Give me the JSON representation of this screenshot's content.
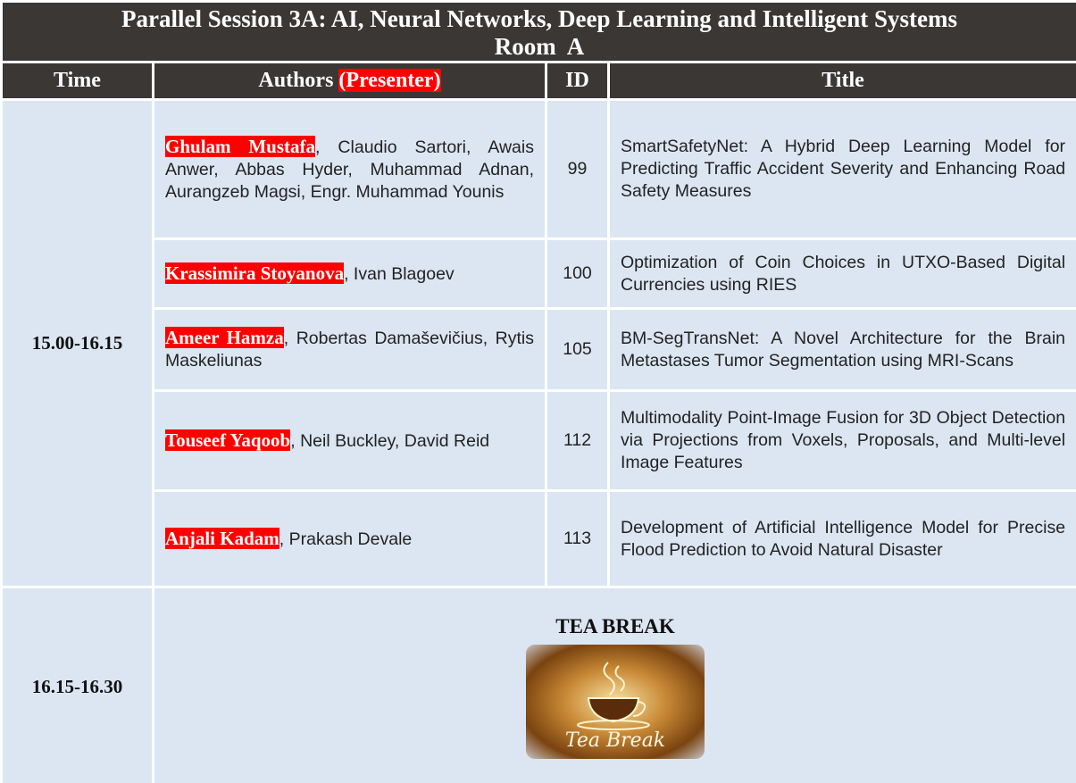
{
  "header": {
    "title": "Parallel Session 3A: AI, Neural Networks, Deep Learning and Intelligent Systems",
    "room": "Room  A"
  },
  "table": {
    "columns": [
      "Time",
      "Authors",
      "ID",
      "Title"
    ],
    "presenter_note": "(Presenter)",
    "session": {
      "time": "15.00-16.15",
      "papers": [
        {
          "presenter": "Ghulam Mustafa",
          "coauthors": ", Claudio Sartori, Awais Anwer, Abbas Hyder, Muhammad Adnan, Aurangzeb Magsi, Engr. Muhammad Younis",
          "id": "99",
          "title": "SmartSafetyNet: A Hybrid Deep Learning Model for Predicting Traffic Accident Severity and Enhancing Road Safety Measures"
        },
        {
          "presenter": "Krassimira Stoyanova",
          "coauthors": ", Ivan Blagoev",
          "id": "100",
          "title": "Optimization of Coin Choices in UTXO-Based Digital Currencies using RIES"
        },
        {
          "presenter": "Ameer Hamza",
          "coauthors": ", Robertas Damaševičius, Rytis Maskeliunas",
          "id": "105",
          "title": "BM-SegTransNet: A Novel Architecture for the Brain Metastases Tumor Segmentation using MRI-Scans"
        },
        {
          "presenter": "Touseef Yaqoob",
          "coauthors": ", Neil Buckley, David Reid",
          "id": "112",
          "title": "Multimodality Point-Image Fusion for 3D Object Detection via Projections from Voxels, Proposals, and Multi-level Image Features"
        },
        {
          "presenter": "Anjali Kadam",
          "coauthors": ", Prakash Devale",
          "id": "113",
          "title": "Development of Artificial Intelligence Model for Precise Flood Prediction to Avoid Natural Disaster"
        }
      ]
    },
    "break": {
      "time": "16.15-16.30",
      "label": "TEA BREAK",
      "image_text": "Tea Break"
    }
  }
}
